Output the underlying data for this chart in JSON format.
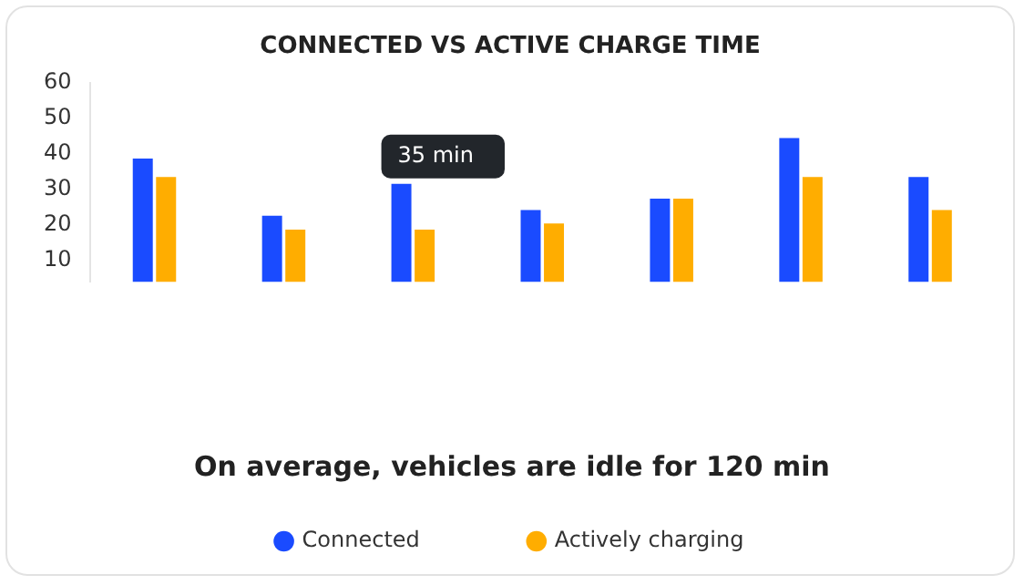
{
  "chart_data": {
    "type": "bar",
    "title": "CONNECTED VS ACTIVE CHARGE TIME",
    "categories": [
      null,
      null,
      null,
      null,
      null,
      null,
      null
    ],
    "series": [
      {
        "name": "Connected",
        "color": "#1a4bff",
        "values": [
          38.7,
          22.6,
          31.6,
          24.2,
          27.4,
          44.5,
          33.5
        ]
      },
      {
        "name": "Actively charging",
        "color": "#ffad00",
        "values": [
          33.5,
          18.7,
          18.7,
          20.4,
          27.4,
          33.5,
          24.2
        ]
      }
    ],
    "ylim": [
      4,
      60
    ],
    "yticks": [
      10,
      20,
      30,
      40,
      50,
      60
    ],
    "grid": false,
    "legend": "bottom",
    "tick_labels": "y",
    "annotations": [
      "35 min",
      "On average, vehicles are idle for 120 min"
    ]
  }
}
